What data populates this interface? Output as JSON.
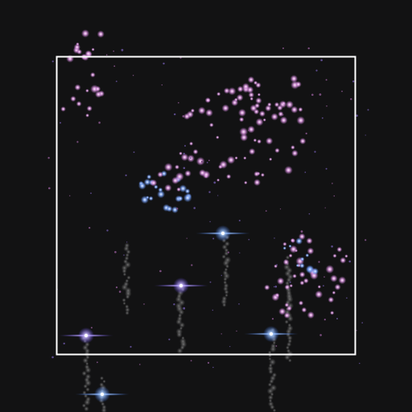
{
  "scene": {
    "background": "#121213",
    "frame_color": "#ffffff",
    "palette": {
      "pink": "#d08cd6",
      "pink_core": "#ffe6ff",
      "blue": "#6f9cff",
      "blue_core": "#eaf2ff",
      "violet": "#a57cff",
      "trail": "#9a9a9a"
    },
    "icons": [
      "firework-spark-icon",
      "rocket-flare-icon",
      "smoke-trail-icon"
    ]
  }
}
